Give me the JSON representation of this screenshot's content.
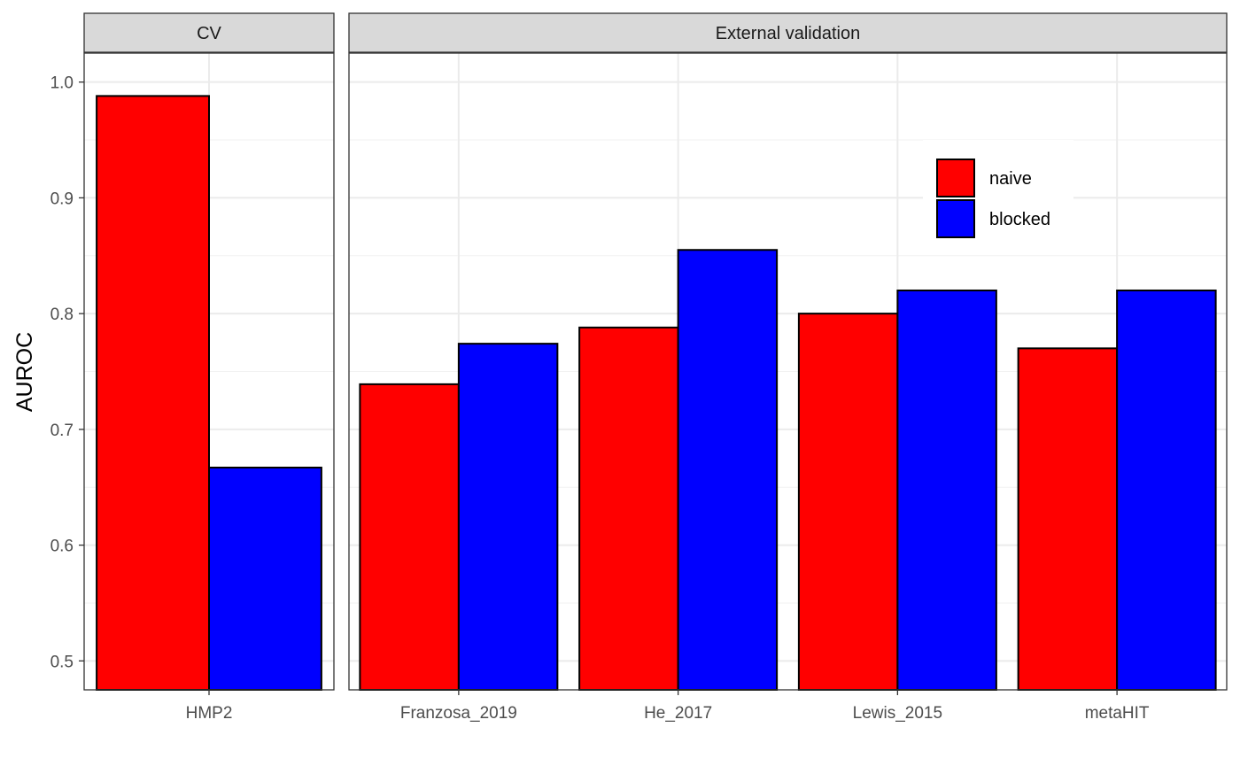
{
  "chart_data": {
    "type": "bar",
    "ylabel": "AUROC",
    "ylim": [
      0.475,
      1.025
    ],
    "yticks": [
      "0.5",
      "0.6",
      "0.7",
      "0.8",
      "0.9",
      "1.0"
    ],
    "grid": true,
    "legend_position": "top-right",
    "series": [
      {
        "name": "naive",
        "color": "#FF0000"
      },
      {
        "name": "blocked",
        "color": "#0000FF"
      }
    ],
    "panels": [
      {
        "title": "CV",
        "categories": [
          "HMP2"
        ],
        "values": {
          "naive": [
            0.988
          ],
          "blocked": [
            0.667
          ]
        }
      },
      {
        "title": "External validation",
        "categories": [
          "Franzosa_2019",
          "He_2017",
          "Lewis_2015",
          "metaHIT"
        ],
        "values": {
          "naive": [
            0.739,
            0.788,
            0.8,
            0.77
          ],
          "blocked": [
            0.774,
            0.855,
            0.82,
            0.82
          ]
        }
      }
    ]
  }
}
